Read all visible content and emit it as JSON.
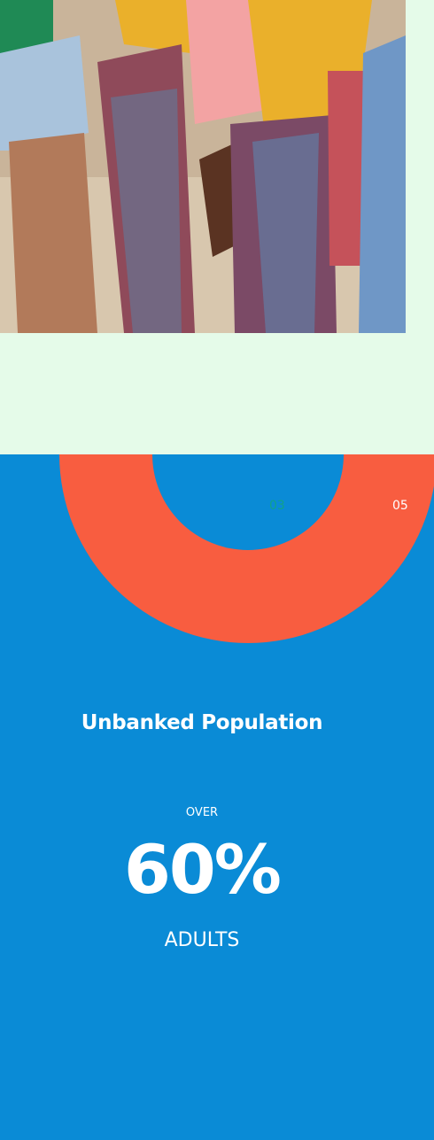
{
  "stats": {
    "markers": [
      "03",
      "05"
    ],
    "title": "Unbanked Population",
    "prefix": "OVER",
    "value": "60%",
    "unit": "ADULTS"
  }
}
